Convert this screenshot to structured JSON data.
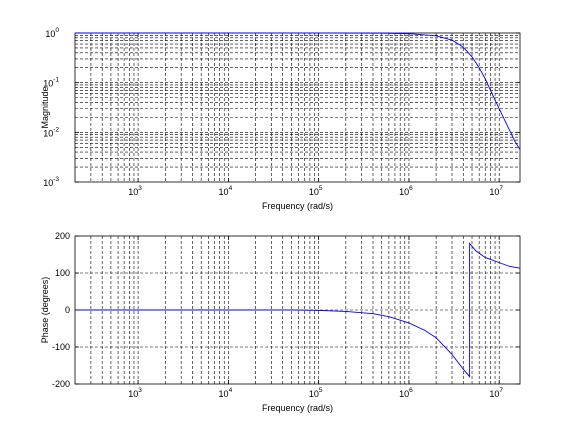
{
  "chart_data": [
    {
      "type": "line",
      "ylabel": "Magnitude",
      "xlabel": "Frequency (rad/s)",
      "xscale": "log",
      "yscale": "log",
      "xlim": [
        200,
        17000000
      ],
      "ylim": [
        0.001,
        1
      ],
      "grid": true,
      "x_ticks": [
        {
          "base": "10",
          "exp": "3",
          "value": 1000
        },
        {
          "base": "10",
          "exp": "4",
          "value": 10000
        },
        {
          "base": "10",
          "exp": "5",
          "value": 100000
        },
        {
          "base": "10",
          "exp": "6",
          "value": 1000000
        },
        {
          "base": "10",
          "exp": "7",
          "value": 10000000
        }
      ],
      "y_ticks": [
        {
          "base": "10",
          "exp": "0",
          "value": 1
        },
        {
          "base": "10",
          "exp": "-1",
          "value": 0.1
        },
        {
          "base": "10",
          "exp": "-2",
          "value": 0.01
        },
        {
          "base": "10",
          "exp": "-3",
          "value": 0.001
        }
      ],
      "series": [
        {
          "color": "#0000ff",
          "x": [
            200,
            1000,
            10000,
            100000,
            500000,
            1000000,
            2000000,
            3000000,
            4000000,
            5000000,
            6000000,
            7000000,
            8000000,
            10000000,
            12000000,
            15000000,
            17000000
          ],
          "y": [
            1,
            1,
            1,
            1,
            0.99,
            0.97,
            0.88,
            0.72,
            0.52,
            0.33,
            0.2,
            0.12,
            0.07,
            0.03,
            0.015,
            0.0065,
            0.0045
          ]
        }
      ]
    },
    {
      "type": "line",
      "ylabel": "Phase (degrees)",
      "xlabel": "Frequency (rad/s)",
      "xscale": "log",
      "yscale": "linear",
      "xlim": [
        200,
        17000000
      ],
      "ylim": [
        -200,
        200
      ],
      "grid": true,
      "x_ticks": [
        {
          "base": "10",
          "exp": "3",
          "value": 1000
        },
        {
          "base": "10",
          "exp": "4",
          "value": 10000
        },
        {
          "base": "10",
          "exp": "5",
          "value": 100000
        },
        {
          "base": "10",
          "exp": "6",
          "value": 1000000
        },
        {
          "base": "10",
          "exp": "7",
          "value": 10000000
        }
      ],
      "y_ticks": [
        200,
        100,
        0,
        -100,
        -200
      ],
      "series": [
        {
          "color": "#0000ff",
          "x": [
            200,
            1000,
            10000,
            50000,
            100000,
            200000,
            400000,
            600000,
            1000000,
            1500000,
            2000000,
            3000000,
            4000000,
            4700000,
            4700001,
            5500000,
            7000000,
            10000000,
            13000000,
            17000000
          ],
          "y": [
            0,
            0,
            0,
            0,
            -1,
            -4,
            -10,
            -18,
            -35,
            -55,
            -75,
            -120,
            -160,
            -180,
            180,
            160,
            142,
            128,
            118,
            113
          ]
        }
      ]
    }
  ]
}
